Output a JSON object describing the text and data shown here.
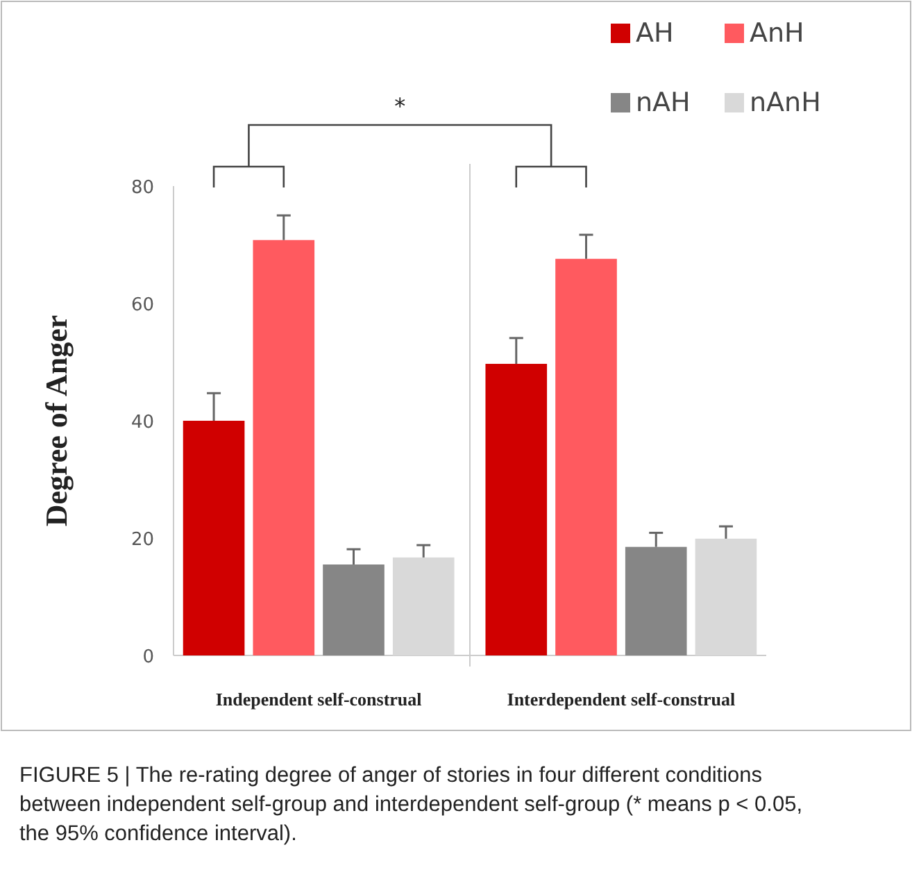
{
  "chart_data": {
    "type": "bar",
    "categories": [
      "Independent self-construal",
      "Interdependent self-construal"
    ],
    "series": [
      {
        "name": "AH",
        "color": "#d00000",
        "values": [
          40.0,
          49.7
        ],
        "errors": [
          [
            40.0,
            44.7
          ],
          [
            49.7,
            54.1
          ]
        ]
      },
      {
        "name": "AnH",
        "color": "#ff5a5f",
        "values": [
          70.8,
          67.6
        ],
        "errors": [
          [
            70.8,
            75.0
          ],
          [
            67.6,
            71.7
          ]
        ]
      },
      {
        "name": "nAH",
        "color": "#868686",
        "values": [
          15.5,
          18.5
        ],
        "errors": [
          [
            15.5,
            18.1
          ],
          [
            18.5,
            20.9
          ]
        ]
      },
      {
        "name": "nAnH",
        "color": "#d9d9d9",
        "values": [
          16.7,
          19.9
        ],
        "errors": [
          [
            16.7,
            18.8
          ],
          [
            19.9,
            22.0
          ]
        ]
      }
    ],
    "ylabel": "Degree of Anger",
    "ylim": [
      0,
      80
    ],
    "yticks": [
      0,
      20,
      40,
      60,
      80
    ],
    "grid": false,
    "legend": "top right",
    "annotations": [
      "*",
      "FIGURE 5 | The re-rating degree of anger of stories in four different conditions between independent self-group and interdependent self-group (* means p < 0.05, the 95% confidence interval)."
    ]
  }
}
